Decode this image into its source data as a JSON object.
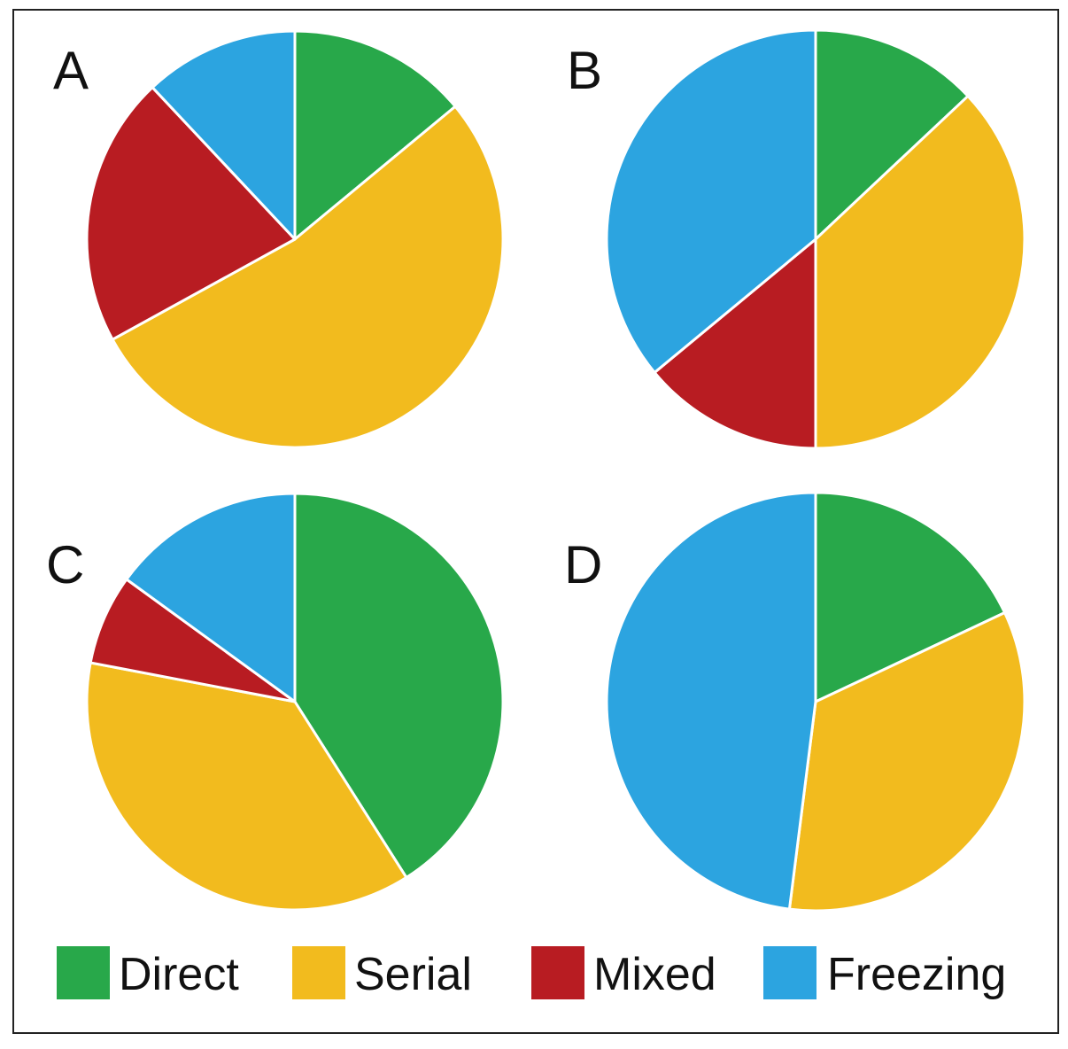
{
  "chart_data": [
    {
      "type": "pie",
      "panel": "A",
      "categories": [
        "Direct",
        "Serial",
        "Mixed",
        "Freezing"
      ],
      "values": [
        14,
        53,
        21,
        12
      ]
    },
    {
      "type": "pie",
      "panel": "B",
      "categories": [
        "Direct",
        "Serial",
        "Mixed",
        "Freezing"
      ],
      "values": [
        13,
        37,
        14,
        36
      ]
    },
    {
      "type": "pie",
      "panel": "C",
      "categories": [
        "Direct",
        "Serial",
        "Mixed",
        "Freezing"
      ],
      "values": [
        41,
        37,
        7,
        15
      ]
    },
    {
      "type": "pie",
      "panel": "D",
      "categories": [
        "Direct",
        "Serial",
        "Mixed",
        "Freezing"
      ],
      "values": [
        18,
        34,
        0,
        48
      ]
    }
  ],
  "legend": {
    "placement": "bottom",
    "items": [
      {
        "label": "Direct",
        "color": "#28a84a"
      },
      {
        "label": "Serial",
        "color": "#f2bb1e"
      },
      {
        "label": "Mixed",
        "color": "#b81c22"
      },
      {
        "label": "Freezing",
        "color": "#2ca4e0"
      }
    ]
  },
  "colors": {
    "Direct": "#28a84a",
    "Serial": "#f2bb1e",
    "Mixed": "#b81c22",
    "Freezing": "#2ca4e0"
  }
}
